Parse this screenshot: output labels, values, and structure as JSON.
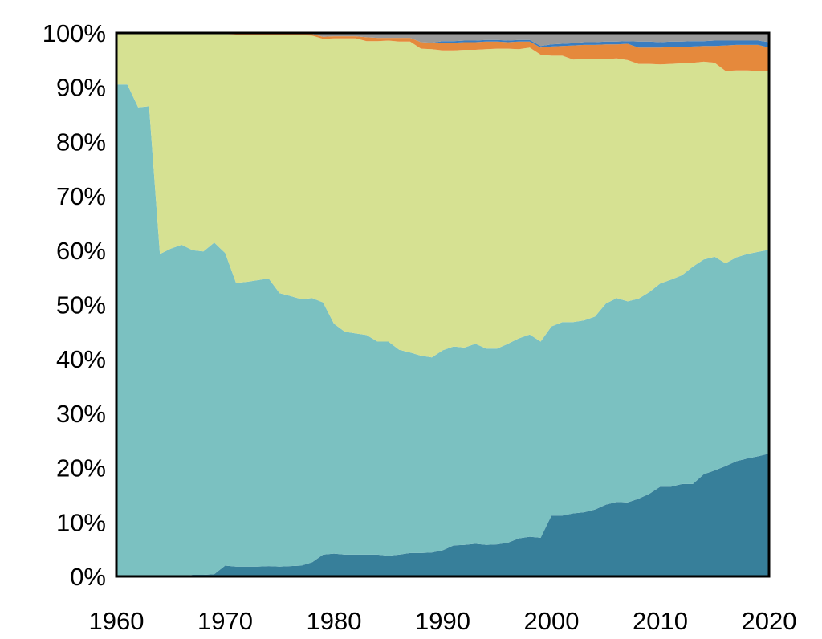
{
  "chart_data": {
    "type": "area",
    "stacked": true,
    "title": "",
    "xlabel": "",
    "ylabel": "",
    "values_are": "cumulative upper boundary of each stacked layer, in percent",
    "xlim": [
      1960,
      2020
    ],
    "ylim": [
      0,
      100
    ],
    "x_ticks": [
      "1960",
      "1970",
      "1980",
      "1990",
      "2000",
      "2010",
      "2020"
    ],
    "y_ticks": [
      "0%",
      "10%",
      "20%",
      "30%",
      "40%",
      "50%",
      "60%",
      "70%",
      "80%",
      "90%",
      "100%"
    ],
    "grid": false,
    "legend": "none",
    "x_start": 1960,
    "series": [
      {
        "name": "layer-1",
        "color": "#377f9a",
        "upper": [
          0,
          0,
          0,
          0,
          0,
          0,
          0,
          0.3,
          0.3,
          0.4,
          2,
          1.8,
          1.8,
          1.8,
          1.9,
          1.8,
          1.9,
          2,
          2.6,
          4,
          4.2,
          4,
          4,
          4,
          4,
          3.8,
          4,
          4.3,
          4.3,
          4.4,
          4.8,
          5.7,
          5.8,
          6,
          5.8,
          5.9,
          6.2,
          7,
          7.3,
          7.1,
          11.2,
          11.2,
          11.6,
          11.8,
          12.3,
          13.2,
          13.7,
          13.6,
          14.3,
          15.2,
          16.5,
          16.5,
          17,
          17,
          18.8,
          19.5,
          20.3,
          21.2,
          21.7,
          22.1,
          22.6
        ]
      },
      {
        "name": "layer-2",
        "color": "#7bc1c1",
        "upper": [
          90.5,
          90.5,
          86.3,
          86.5,
          59.3,
          60.3,
          61,
          60,
          59.8,
          61.4,
          59.5,
          54,
          54.2,
          54.5,
          54.8,
          52.1,
          51.6,
          51,
          51.2,
          50.4,
          46.5,
          45,
          44.7,
          44.4,
          43.2,
          43.2,
          41.7,
          41.2,
          40.6,
          40.3,
          41.6,
          42.3,
          42.1,
          42.8,
          41.9,
          41.9,
          42.8,
          43.8,
          44.5,
          43.2,
          46,
          46.8,
          46.8,
          47.1,
          47.8,
          50.2,
          51.2,
          50.6,
          51.1,
          52.3,
          53.9,
          54.6,
          55.4,
          57,
          58.3,
          58.8,
          57.6,
          58.7,
          59.3,
          59.7,
          60.1
        ]
      },
      {
        "name": "layer-3",
        "color": "#d6e192",
        "upper": [
          100,
          100,
          100,
          100,
          100,
          100,
          100,
          100,
          100,
          99.9,
          99.8,
          99.7,
          99.7,
          99.7,
          99.7,
          99.6,
          99.6,
          99.6,
          99.5,
          98.9,
          99,
          99,
          99,
          98.5,
          98.5,
          98.6,
          98.4,
          98.4,
          97.1,
          97,
          96.8,
          96.8,
          96.9,
          96.9,
          97,
          97.1,
          97.1,
          97,
          97.3,
          96,
          95.8,
          95.8,
          95.1,
          95.2,
          95.2,
          95.2,
          95.3,
          95,
          94.3,
          94.3,
          94.2,
          94.3,
          94.4,
          94.5,
          94.7,
          94.5,
          93,
          93.1,
          93.1,
          93,
          92.9
        ]
      },
      {
        "name": "layer-4",
        "color": "#e5893c",
        "upper": [
          100,
          100,
          100,
          100,
          100,
          100,
          100,
          100,
          100,
          99.95,
          99.9,
          99.9,
          99.9,
          99.9,
          99.9,
          99.9,
          99.9,
          99.9,
          99.8,
          99.3,
          99.4,
          99.4,
          99.4,
          99.2,
          99.1,
          99.1,
          99.1,
          99.1,
          98.3,
          98.2,
          98.2,
          98.2,
          98.3,
          98.3,
          98.4,
          98.4,
          98.3,
          98.4,
          98.4,
          97.3,
          97.5,
          97.6,
          97.7,
          97.8,
          97.8,
          97.9,
          97.9,
          98,
          97.3,
          97.3,
          97.3,
          97.4,
          97.4,
          97.5,
          97.6,
          97.6,
          97.7,
          97.8,
          97.8,
          97.8,
          97.3
        ]
      },
      {
        "name": "layer-5",
        "color": "#3a7dc0",
        "upper": [
          100,
          100,
          100,
          100,
          100,
          100,
          100,
          100,
          100,
          99.95,
          99.9,
          99.9,
          99.9,
          99.9,
          99.9,
          99.9,
          99.9,
          99.9,
          99.8,
          99.3,
          99.4,
          99.4,
          99.4,
          99.2,
          99.1,
          99.1,
          99.1,
          99.1,
          98.3,
          98.2,
          98.5,
          98.5,
          98.6,
          98.6,
          98.7,
          98.7,
          98.6,
          98.7,
          98.7,
          97.6,
          97.9,
          98,
          98.1,
          98.3,
          98.3,
          98.4,
          98.4,
          98.5,
          98.4,
          98.4,
          98.3,
          98.4,
          98.4,
          98.5,
          98.5,
          98.6,
          98.6,
          98.6,
          98.6,
          98.6,
          98.3
        ]
      },
      {
        "name": "layer-6",
        "color": "#999999",
        "upper": [
          100,
          100,
          100,
          100,
          100,
          100,
          100,
          100,
          100,
          100,
          100,
          100,
          100,
          100,
          100,
          100,
          100,
          100,
          100,
          100,
          100,
          100,
          100,
          100,
          100,
          100,
          100,
          100,
          100,
          100,
          100,
          100,
          100,
          100,
          100,
          100,
          100,
          100,
          100,
          100,
          100,
          100,
          100,
          100,
          100,
          100,
          100,
          100,
          100,
          100,
          100,
          100,
          100,
          100,
          100,
          100,
          100,
          100,
          100,
          100,
          100
        ]
      }
    ]
  }
}
